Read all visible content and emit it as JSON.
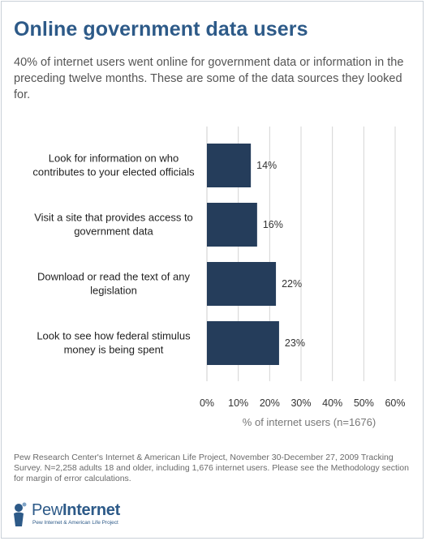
{
  "header": {
    "title": "Online government data users",
    "subtitle": "40% of internet users went online for government data or information in the preceding twelve months. These are some of the data sources they looked for."
  },
  "chart_data": {
    "type": "bar",
    "orientation": "horizontal",
    "categories": [
      [
        "Look for information on who",
        "contributes to your elected officials"
      ],
      [
        "Visit a site that provides access to",
        "government data"
      ],
      [
        "Download or read the text of any",
        "legislation"
      ],
      [
        "Look to see how federal stimulus",
        "money is being spent"
      ]
    ],
    "values": [
      14,
      16,
      22,
      23
    ],
    "value_labels": [
      "14%",
      "16%",
      "22%",
      "23%"
    ],
    "xlim": [
      0,
      60
    ],
    "xticks": [
      "0%",
      "10%",
      "20%",
      "30%",
      "40%",
      "50%",
      "60%"
    ],
    "xlabel": "% of internet users (n=1676)",
    "grid": true,
    "bar_color": "#253d5b",
    "grid_color": "#d4d4d4"
  },
  "footnote": "Pew Research Center's Internet & American Life Project, November 30-December 27, 2009 Tracking Survey. N=2,258 adults 18 and older, including 1,676 internet users. Please see the Methodology section for margin of error calculations.",
  "logo": {
    "main_a": "Pew",
    "main_b": "Internet",
    "sub": "Pew Internet & American Life Project",
    "icon": "pew-logo-icon"
  }
}
